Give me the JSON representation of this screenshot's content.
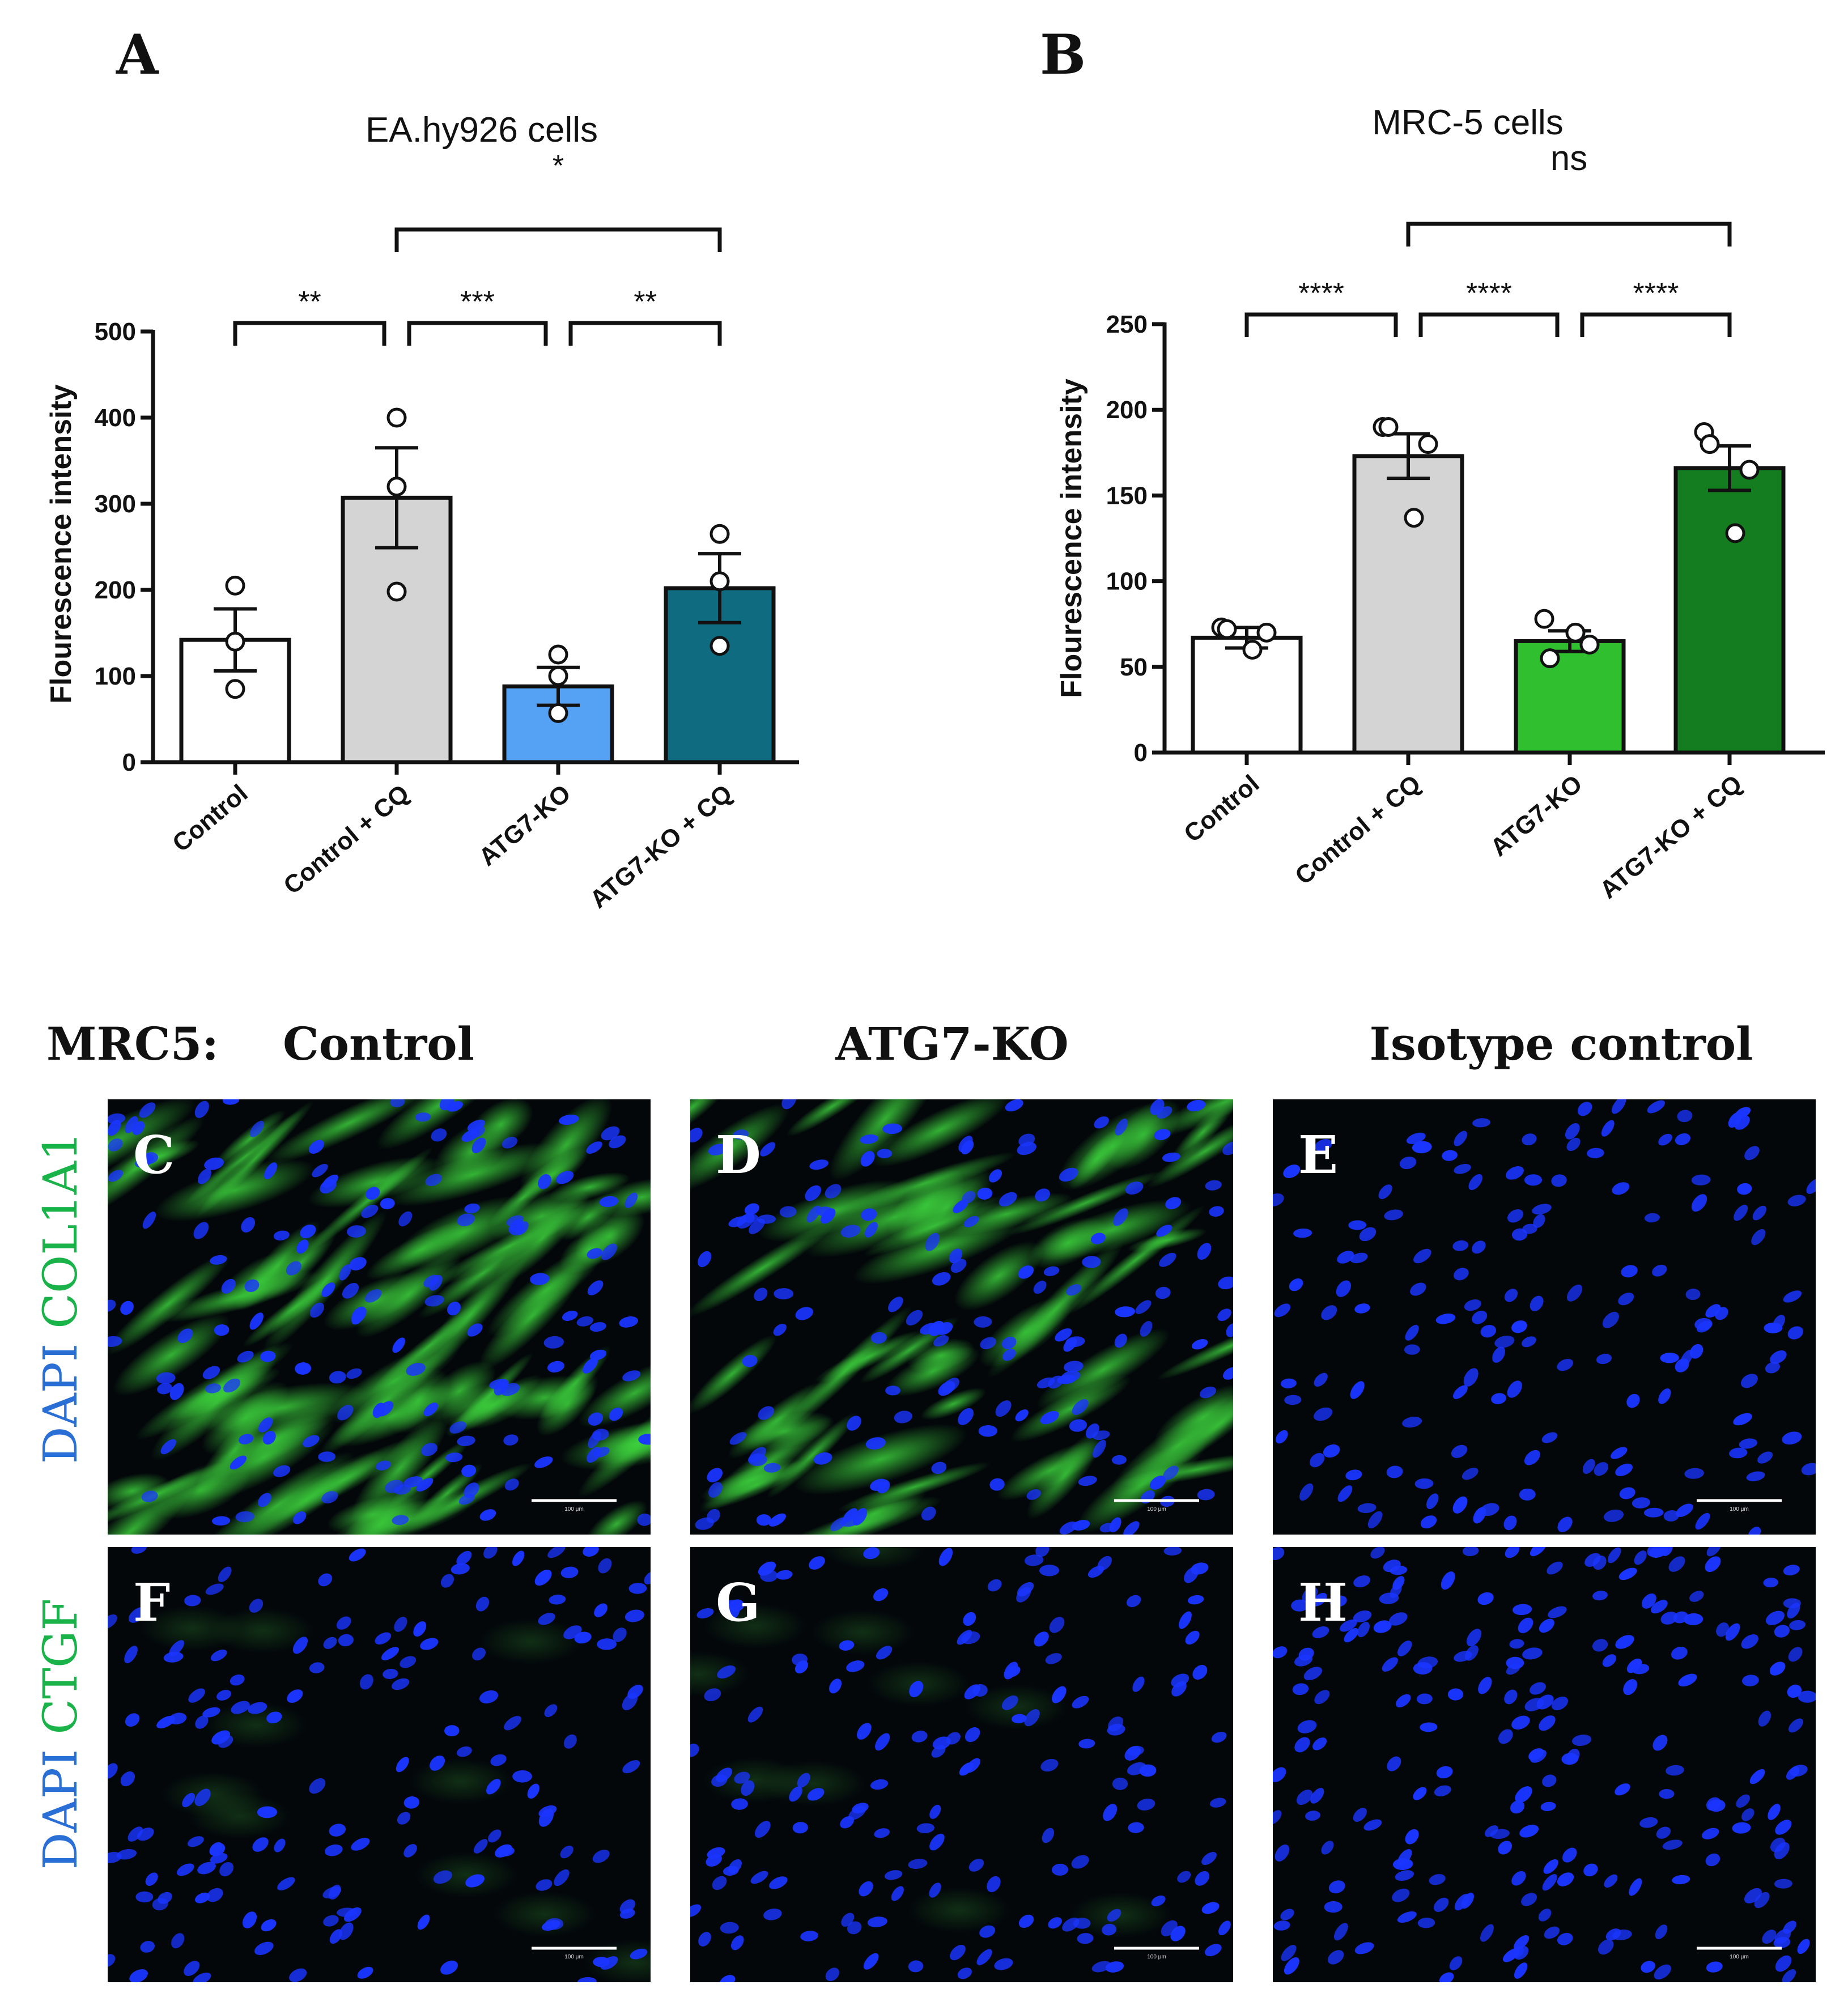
{
  "chart_data": [
    {
      "panel": "A",
      "type": "bar",
      "title": "EA.hy926 cells",
      "ylabel": "Flourescence intensity",
      "ylim": [
        0,
        500
      ],
      "yticks": [
        "0",
        "100",
        "200",
        "300",
        "400",
        "500"
      ],
      "categories": [
        "Control",
        "Control + CQ",
        "ATG7-KO",
        "ATG7-KO + CQ"
      ],
      "values": [
        142,
        307,
        88,
        202
      ],
      "errors": [
        36,
        58,
        22,
        40
      ],
      "points": [
        [
          205,
          140,
          85
        ],
        [
          400,
          320,
          198
        ],
        [
          125,
          100,
          57
        ],
        [
          265,
          210,
          135
        ]
      ],
      "colors": [
        "#ffffff",
        "#d4d4d4",
        "#55a2f5",
        "#0f6b80"
      ],
      "comparisons": [
        {
          "from": 0,
          "to": 1,
          "label": "**",
          "level": 0
        },
        {
          "from": 1,
          "to": 2,
          "label": "***",
          "level": 0
        },
        {
          "from": 2,
          "to": 3,
          "label": "**",
          "level": 0
        },
        {
          "from": 1,
          "to": 3,
          "label": "*",
          "level": 1
        }
      ]
    },
    {
      "panel": "B",
      "type": "bar",
      "title": "MRC-5 cells",
      "ylabel": "Flourescence intensity",
      "ylim": [
        0,
        250
      ],
      "yticks": [
        "0",
        "50",
        "100",
        "150",
        "200",
        "250"
      ],
      "categories": [
        "Control",
        "Control + CQ",
        "ATG7-KO",
        "ATG7-KO + CQ"
      ],
      "values": [
        67,
        173,
        65,
        166
      ],
      "errors": [
        6,
        13,
        6,
        13
      ],
      "points": [
        [
          73,
          70,
          60,
          72
        ],
        [
          190,
          180,
          137,
          190
        ],
        [
          78,
          63,
          70,
          55
        ],
        [
          187,
          165,
          128,
          180
        ]
      ],
      "colors": [
        "#ffffff",
        "#d4d4d4",
        "#2fbf2f",
        "#147d1f"
      ],
      "comparisons": [
        {
          "from": 0,
          "to": 1,
          "label": "****",
          "level": 0
        },
        {
          "from": 1,
          "to": 2,
          "label": "****",
          "level": 0
        },
        {
          "from": 2,
          "to": 3,
          "label": "****",
          "level": 0
        },
        {
          "from": 1,
          "to": 3,
          "label": "ns",
          "level": 1
        }
      ]
    }
  ],
  "micrographs": {
    "row_prefix": "MRC5:",
    "columns": [
      "Control",
      "ATG7-KO",
      "Isotype control"
    ],
    "rows": [
      {
        "stain_blue": "DAPI",
        "stain_green": "COL1A1",
        "letters": [
          "C",
          "D",
          "E"
        ]
      },
      {
        "stain_blue": "DAPI",
        "stain_green": "CTGF",
        "letters": [
          "F",
          "G",
          "H"
        ]
      }
    ],
    "scale_bar_label": "100 μm",
    "colors": {
      "nucleus": "#1a35ff",
      "stain": "#3ccf3c",
      "background": "#03070a"
    }
  }
}
